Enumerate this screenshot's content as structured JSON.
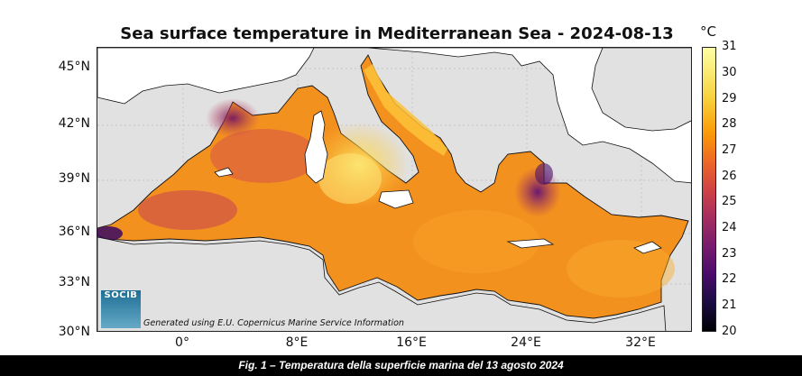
{
  "title": "Sea surface temperature in Mediterranean Sea - 2024-08-13",
  "map": {
    "lat_labels": [
      "45°N",
      "42°N",
      "39°N",
      "36°N",
      "33°N",
      "30°N"
    ],
    "lon_labels": [
      "0°",
      "8°E",
      "16°E",
      "24°E",
      "32°E"
    ],
    "colors": {
      "land": "#ffffff",
      "no_data": "#e1e1e1"
    }
  },
  "colorbar": {
    "unit": "°C",
    "min": 20,
    "max": 31,
    "ticks": [
      "31",
      "30",
      "29",
      "28",
      "27",
      "26",
      "25",
      "24",
      "23",
      "22",
      "21",
      "20"
    ],
    "colormap": "inferno"
  },
  "credit": "Generated using E.U. Copernicus Marine Service Information",
  "logo_text": "SOCIB",
  "caption": "Fig. 1 – Temperatura della superficie marina del 13 agosto 2024"
}
